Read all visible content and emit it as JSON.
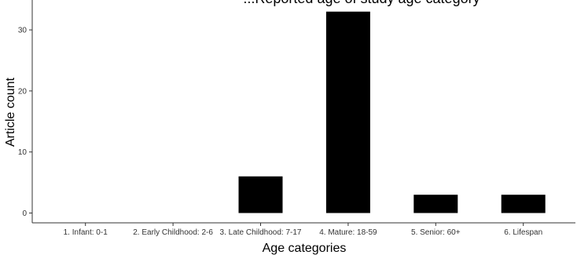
{
  "chart_data": {
    "type": "bar",
    "title": "...Reported age of study age category",
    "xlabel": "Age categories",
    "ylabel": "Article count",
    "categories": [
      "1. Infant: 0-1",
      "2. Early Childhood: 2-6",
      "3. Late Childhood: 7-17",
      "4. Mature: 18-59",
      "5. Senior: 60+",
      "6. Lifespan"
    ],
    "values": [
      0,
      0,
      6,
      33,
      3,
      3
    ],
    "ylim": [
      0,
      34.5
    ],
    "yticks": [
      0,
      10,
      20,
      30
    ],
    "grid": false,
    "bar_color": "#000000"
  }
}
